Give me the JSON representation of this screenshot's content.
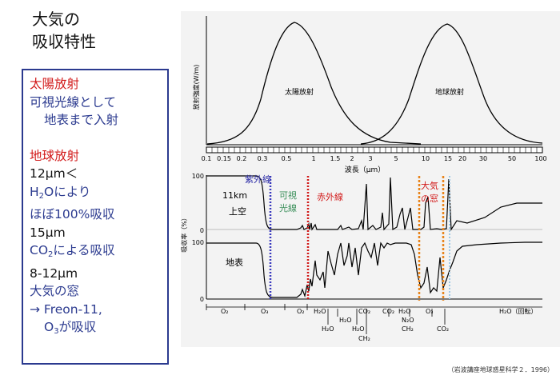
{
  "title": {
    "line1": "大気の",
    "line2": "吸収特性"
  },
  "box": {
    "solar_head": "太陽放射",
    "solar_1": "可視光線として",
    "solar_2": "地表まで入射",
    "earth_head": "地球放射",
    "l_12um": "12μm＜",
    "h2o_h": "H",
    "h2o_2": "2",
    "h2o_rest": "Oにより",
    "l_100": "ほぼ100%吸収",
    "l_15um": "15μm",
    "co2_c": "CO",
    "co2_2": "2",
    "co2_rest": "による吸収",
    "l_8_12": "8-12μm",
    "window": "大気の窓",
    "freon": "→ Freon-11,",
    "o3_o": "O",
    "o3_3": "3",
    "o3_rest": "が吸収"
  },
  "figure": {
    "emission_ylabel": "放射強度(W/m)",
    "solar_label": "太陽放射",
    "earth_label": "地球放射",
    "x_ticks": [
      "0.1",
      "0.15",
      "0.2",
      "0.3",
      "0.5",
      "1",
      "1.5",
      "2",
      "3",
      "5",
      "10",
      "15",
      "20",
      "30",
      "50",
      "100"
    ],
    "wavelength_label": "波長（μm）",
    "absorb_ylabel": "吸収率（%）",
    "y100": "100",
    "y0": "0",
    "altitude": "11km",
    "upper_air": "上空",
    "surface": "地表",
    "uv": "紫外線",
    "visible_1": "可視",
    "visible_2": "光線",
    "infrared": "赤外線",
    "window_1": "大気",
    "window_2": "の窓",
    "gases": {
      "o2_a": "O₂",
      "o3": "O₃",
      "o2_b": "O₂",
      "h2o_1": "H₂O",
      "h2o_2": "H₂O",
      "h2o_3": "H₂O",
      "co2_1": "CO₂",
      "h2o_4": "H₂O",
      "ch2_1": "CH₂",
      "co2_2": "CO₂",
      "h2o_5": "H₂O",
      "n2o": "N₂O",
      "ch2_2": "CH₂",
      "o3_b": "O₃",
      "co2_3": "CO₂",
      "h2o_rot": "H₂O（回転）"
    },
    "citation": "（岩波講座地球惑星科学２．1996）"
  }
}
